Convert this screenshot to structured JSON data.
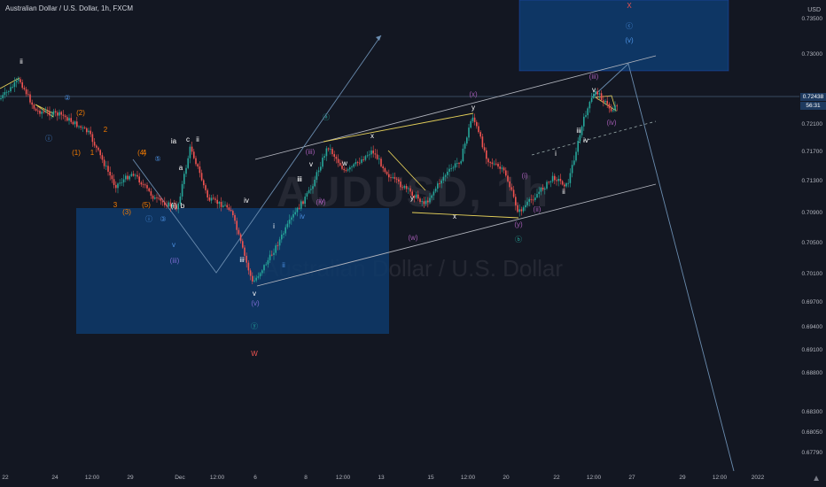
{
  "header": {
    "legend": "Australian Dollar / U.S. Dollar, 1h, FXCM",
    "watermark_symbol": "AUDUSD, 1h",
    "watermark_name": "Australian Dollar / U.S. Dollar"
  },
  "price_axis": {
    "currency": "USD",
    "ticks": [
      "0.73500",
      "0.73000",
      "0.72100",
      "0.71700",
      "0.71300",
      "0.70900",
      "0.70500",
      "0.70100",
      "0.69700",
      "0.69400",
      "0.69100",
      "0.68800",
      "0.68300",
      "0.68050",
      "0.67790"
    ],
    "last_price": "0.72438",
    "countdown": "56:31"
  },
  "time_axis": {
    "ticks": [
      "22",
      "24",
      "12:00",
      "29",
      "Dec",
      "12:00",
      "6",
      "8",
      "12:00",
      "13",
      "15",
      "12:00",
      "20",
      "22",
      "12:00",
      "27",
      "29",
      "12:00",
      "2022"
    ]
  },
  "wave_labels": [
    "ii",
    "ⓘ",
    "(1)",
    "(2)",
    "1",
    "2",
    "3",
    "4",
    "(3)",
    "(4)",
    "(5)",
    "ⓘ",
    "②",
    "③",
    "⑤",
    "iv",
    "iii",
    "(iii)",
    "(i)",
    "v",
    "a",
    "b",
    "c",
    "ii",
    "ia",
    "i",
    "ii",
    "iii",
    "iv",
    "v",
    "(v)",
    "ⓨ",
    "W",
    "ⓐ",
    "iii",
    "iv",
    "(iii)",
    "(iv)",
    "v",
    "w",
    "x",
    "y",
    "(w)",
    "(x)",
    "x",
    "y",
    "(y)",
    "ⓑ",
    "(i)",
    "(ii)",
    "i",
    "ii",
    "iii",
    "iv",
    "v",
    "(iii)",
    "(iv)",
    "X",
    "ⓒ",
    "(v)"
  ],
  "colors": {
    "background": "#131722",
    "up_candle": "#26a69a",
    "down_candle": "#ef5350",
    "zone_fill": "#0e3a6b",
    "trendline": "#6a8caf",
    "channel": "#b2b5be",
    "yellow_line": "#e6d15a",
    "label_orange": "#f57c00",
    "label_blue": "#4a8fe0",
    "label_purple": "#a05ab0",
    "label_green": "#26a69a",
    "label_red": "#ef5350"
  },
  "icons": {
    "logo": "tradingview-logo-icon"
  }
}
